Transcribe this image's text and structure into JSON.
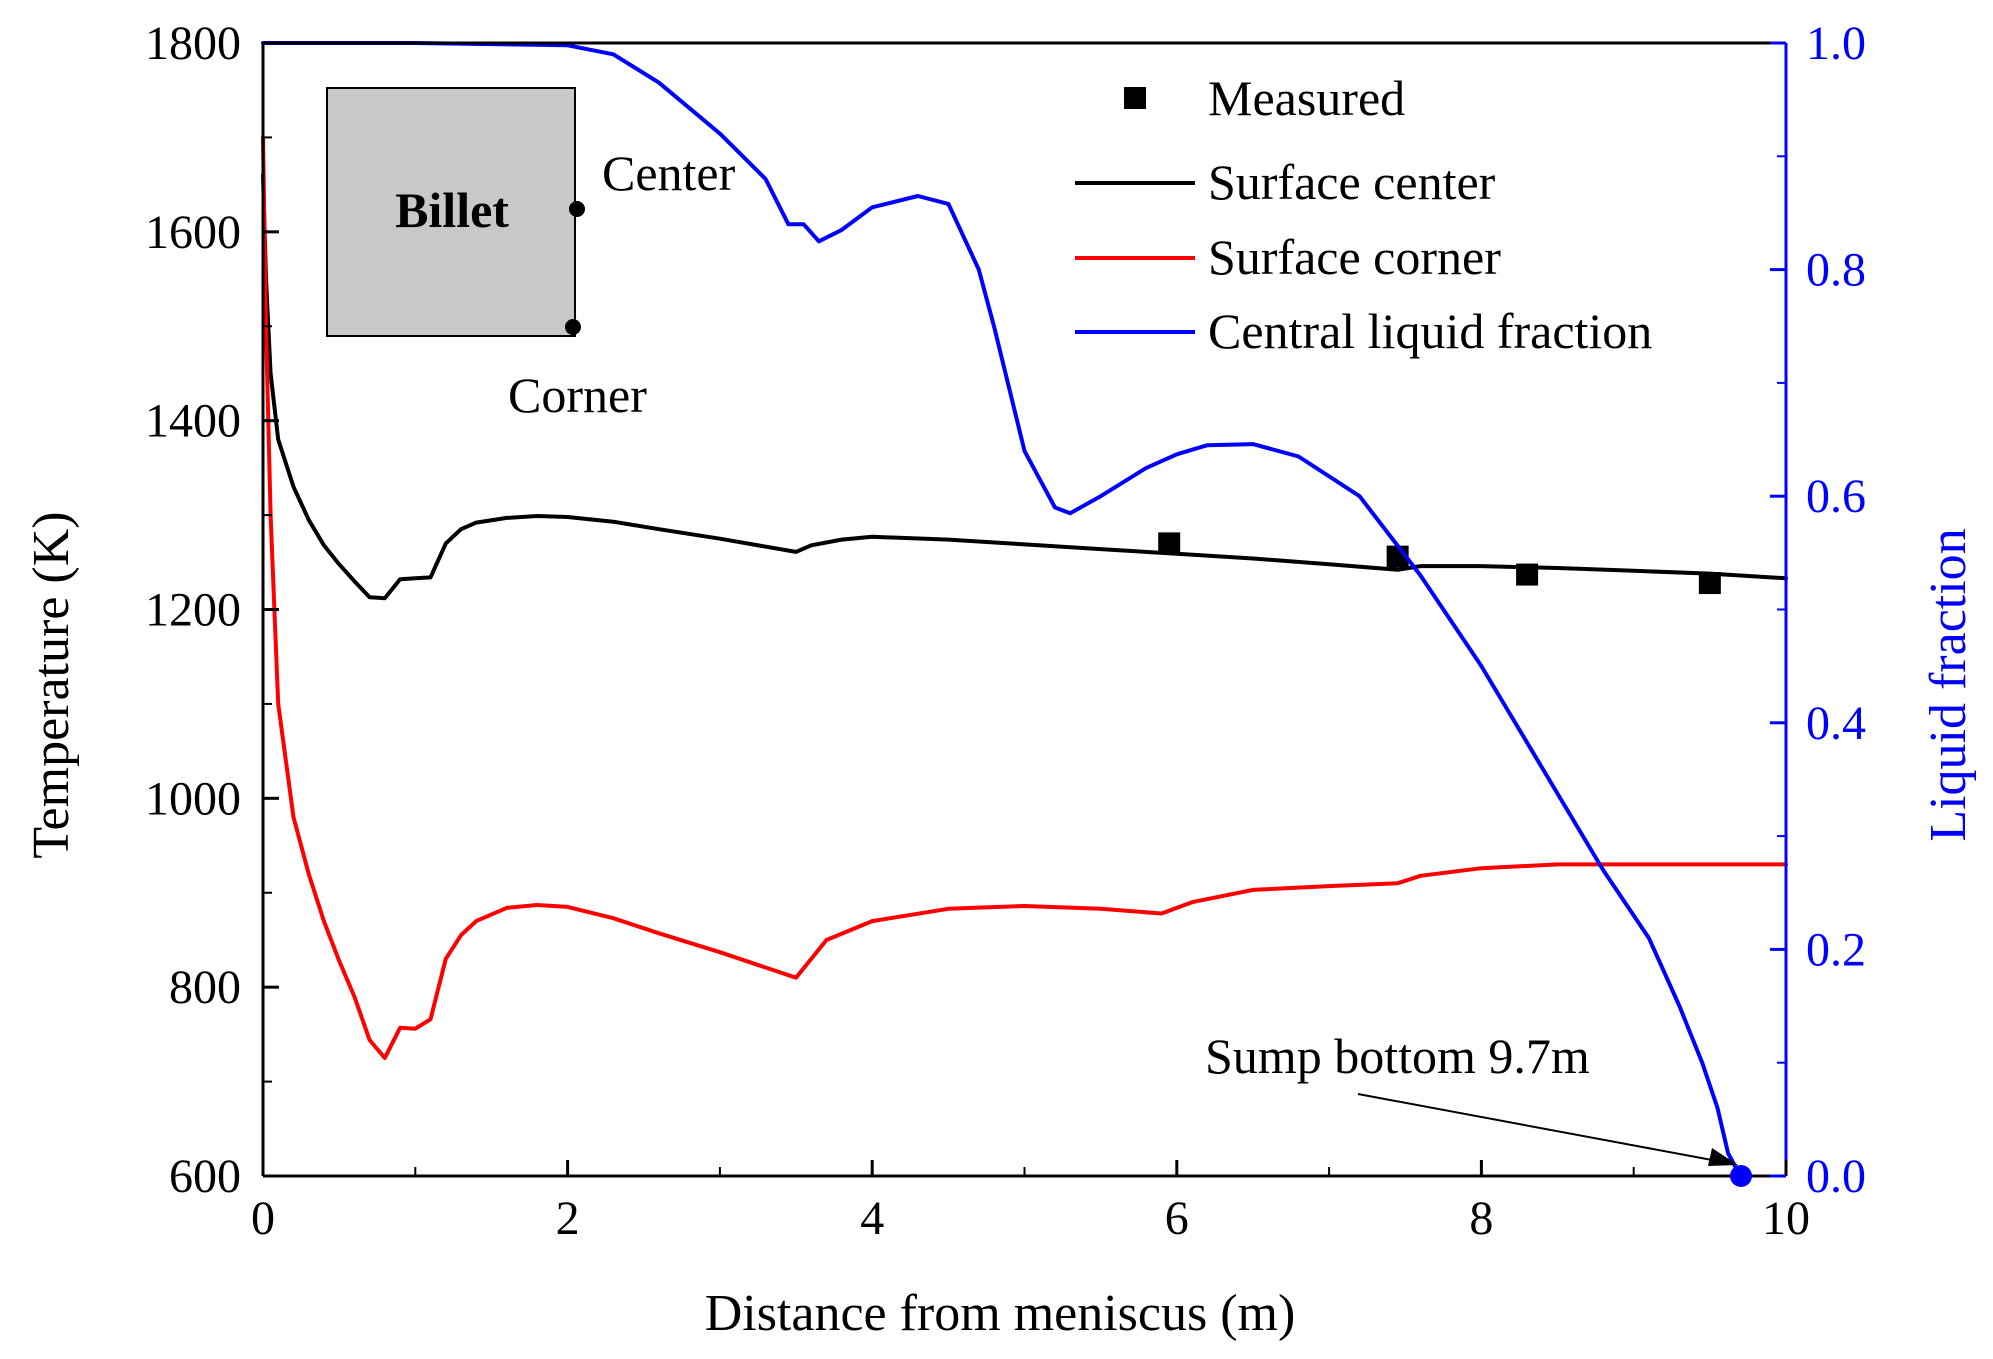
{
  "chart_data": {
    "type": "line",
    "title": "",
    "xlabel": "Distance from meniscus (m)",
    "ylabel": "Temperature (K)",
    "y2label": "Liquid fraction",
    "xlim": [
      0,
      10
    ],
    "ylim": [
      600,
      1800
    ],
    "y2lim": [
      0,
      1
    ],
    "xticks": [
      0,
      2,
      4,
      6,
      8,
      10
    ],
    "xtick_labels": [
      "0",
      "2",
      "4",
      "6",
      "8",
      "10"
    ],
    "yticks": [
      600,
      800,
      1000,
      1200,
      1400,
      1600,
      1800
    ],
    "ytick_labels": [
      "600",
      "800",
      "1000",
      "1200",
      "1400",
      "1600",
      "1800"
    ],
    "y2ticks": [
      0,
      0.2,
      0.4,
      0.6,
      0.8,
      1.0
    ],
    "y2tick_labels": [
      "0.0",
      "0.2",
      "0.4",
      "0.6",
      "0.8",
      "1.0"
    ],
    "legend_position": "top-right",
    "colors": {
      "surface_center": "#000000",
      "surface_corner": "#ff0000",
      "liquid_fraction": "#0000ff",
      "measured": "#000000",
      "billet_fill": "#c8c8c8",
      "right_axis": "#0000ff"
    },
    "series": [
      {
        "name": "Measured",
        "kind": "marker",
        "axis": "left",
        "x": [
          5.95,
          7.45,
          8.3,
          9.5
        ],
        "y": [
          1270,
          1256,
          1237,
          1228
        ]
      },
      {
        "name": "Surface center",
        "kind": "line",
        "axis": "left",
        "x": [
          0,
          0.02,
          0.05,
          0.1,
          0.2,
          0.3,
          0.4,
          0.5,
          0.6,
          0.7,
          0.8,
          0.9,
          1.0,
          1.1,
          1.2,
          1.3,
          1.4,
          1.6,
          1.8,
          2.0,
          2.3,
          2.6,
          3.0,
          3.5,
          3.6,
          3.8,
          4.0,
          4.5,
          5.0,
          5.5,
          6.0,
          6.5,
          7.0,
          7.45,
          7.6,
          8.0,
          8.5,
          9.0,
          9.5,
          10.0
        ],
        "y": [
          1660,
          1550,
          1450,
          1380,
          1330,
          1295,
          1268,
          1248,
          1230,
          1213,
          1212,
          1232,
          1233,
          1234,
          1270,
          1285,
          1292,
          1297,
          1299,
          1298,
          1293,
          1285,
          1275,
          1261,
          1268,
          1274,
          1277,
          1274,
          1269,
          1264,
          1259,
          1254,
          1248,
          1242,
          1246,
          1246,
          1244,
          1241,
          1238,
          1233
        ]
      },
      {
        "name": "Surface corner",
        "kind": "line",
        "axis": "left",
        "x": [
          0,
          0.02,
          0.05,
          0.1,
          0.2,
          0.3,
          0.4,
          0.5,
          0.6,
          0.7,
          0.8,
          0.9,
          1.0,
          1.1,
          1.2,
          1.3,
          1.4,
          1.6,
          1.8,
          2.0,
          2.3,
          2.6,
          3.0,
          3.5,
          3.7,
          4.0,
          4.5,
          5.0,
          5.5,
          5.9,
          6.1,
          6.5,
          7.0,
          7.45,
          7.6,
          8.0,
          8.5,
          9.0,
          9.5,
          10.0
        ],
        "y": [
          1700,
          1500,
          1300,
          1100,
          980,
          920,
          870,
          828,
          790,
          744,
          725,
          757,
          756,
          766,
          830,
          855,
          870,
          884,
          887,
          885,
          873,
          857,
          837,
          810,
          850,
          870,
          883,
          886,
          883,
          878,
          890,
          903,
          907,
          910,
          918,
          926,
          930,
          930,
          930,
          930
        ]
      },
      {
        "name": "Central liquid fraction",
        "kind": "line",
        "axis": "right",
        "x": [
          0,
          1.0,
          2.0,
          2.3,
          2.6,
          3.0,
          3.3,
          3.45,
          3.55,
          3.65,
          3.8,
          4.0,
          4.3,
          4.5,
          4.7,
          4.8,
          5.0,
          5.1,
          5.2,
          5.3,
          5.5,
          5.8,
          6.0,
          6.2,
          6.5,
          6.8,
          7.2,
          7.6,
          8.0,
          8.4,
          8.8,
          9.1,
          9.3,
          9.45,
          9.55,
          9.62,
          9.7
        ],
        "y": [
          1.0,
          1.0,
          0.998,
          0.99,
          0.965,
          0.92,
          0.88,
          0.84,
          0.84,
          0.825,
          0.835,
          0.855,
          0.865,
          0.858,
          0.8,
          0.75,
          0.64,
          0.615,
          0.59,
          0.585,
          0.6,
          0.625,
          0.637,
          0.645,
          0.646,
          0.635,
          0.6,
          0.53,
          0.45,
          0.36,
          0.27,
          0.21,
          0.15,
          0.1,
          0.06,
          0.02,
          0.0
        ]
      }
    ],
    "annotations": {
      "inset_title": "Billet",
      "inset_center_label": "Center",
      "inset_corner_label": "Corner",
      "sump_label": "Sump bottom 9.7m",
      "sump_point": {
        "x": 9.7,
        "y2": 0.0
      }
    }
  }
}
